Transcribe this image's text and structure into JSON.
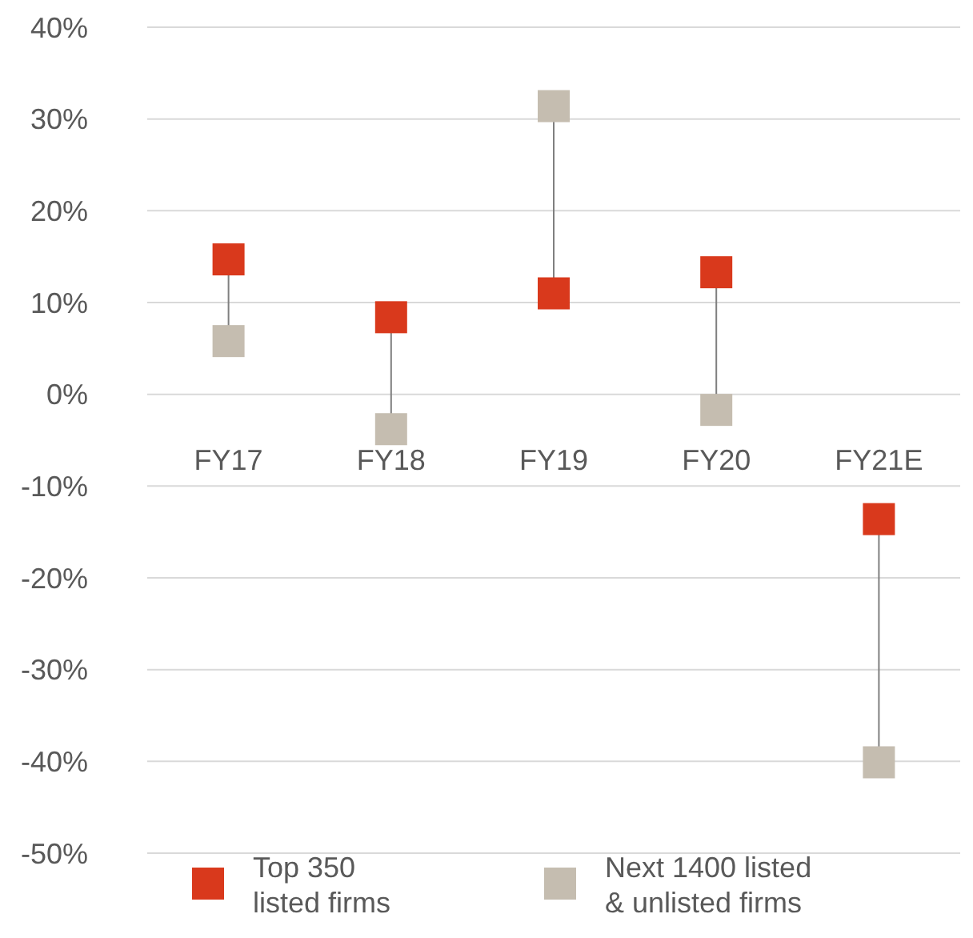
{
  "chart_data": {
    "type": "scatter",
    "categories": [
      "FY17",
      "FY18",
      "FY19",
      "FY20",
      "FY21E"
    ],
    "series": [
      {
        "name": "Top 350 listed firms",
        "color": "#d9391c",
        "values": [
          14.7,
          8.4,
          11.0,
          13.3,
          -13.6
        ]
      },
      {
        "name": "Next 1400 listed & unlisted firms",
        "color": "#c5bdb0",
        "values": [
          5.8,
          -3.8,
          31.4,
          -1.7,
          -40.1
        ]
      }
    ],
    "ylim": [
      -50,
      40
    ],
    "yticks": [
      {
        "value": -50,
        "label": "-50%"
      },
      {
        "value": -40,
        "label": "-40%"
      },
      {
        "value": -30,
        "label": "-30%"
      },
      {
        "value": -20,
        "label": "-20%"
      },
      {
        "value": -10,
        "label": "-10%"
      },
      {
        "value": 0,
        "label": "0%"
      },
      {
        "value": 10,
        "label": "10%"
      },
      {
        "value": 20,
        "label": "20%"
      },
      {
        "value": 30,
        "label": "30%"
      },
      {
        "value": 40,
        "label": "40%"
      }
    ],
    "grid": "y",
    "marker": "square",
    "legend": "bottom"
  }
}
